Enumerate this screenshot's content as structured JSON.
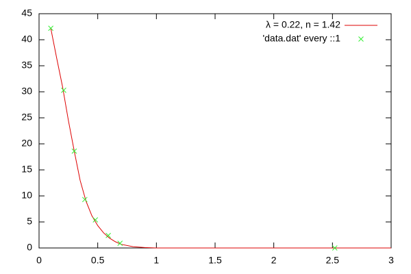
{
  "chart_data": {
    "type": "line",
    "xlim": [
      0,
      3
    ],
    "xticks": [
      0,
      0.5,
      1,
      1.5,
      2,
      2.5,
      3
    ],
    "ylim": [
      0,
      45
    ],
    "yticks": [
      0,
      5,
      10,
      15,
      20,
      25,
      30,
      35,
      40,
      45
    ],
    "grid": false,
    "legend": "top-right",
    "series": [
      {
        "name": "λ = 0.22, n = 1.42",
        "color": "#dd0000",
        "type": "line",
        "x": [
          0.1,
          0.15,
          0.2,
          0.25,
          0.3,
          0.35,
          0.4,
          0.45,
          0.5,
          0.55,
          0.6,
          0.65,
          0.7,
          0.8,
          0.9,
          1.0,
          3
        ],
        "values": [
          42.2,
          36.5,
          31,
          24.5,
          18.6,
          13,
          9,
          6.2,
          4.3,
          2.9,
          1.9,
          1.2,
          0.7,
          0.25,
          0.08,
          0,
          0
        ]
      },
      {
        "name": "'data.dat' every ::1",
        "color": "#33ee33",
        "type": "scatter",
        "x": [
          0.1,
          0.21,
          0.3,
          0.39,
          0.48,
          0.59,
          0.69,
          2.52
        ],
        "values": [
          42.2,
          30.3,
          18.6,
          9.3,
          5.4,
          2.4,
          0.9,
          0
        ]
      }
    ]
  }
}
